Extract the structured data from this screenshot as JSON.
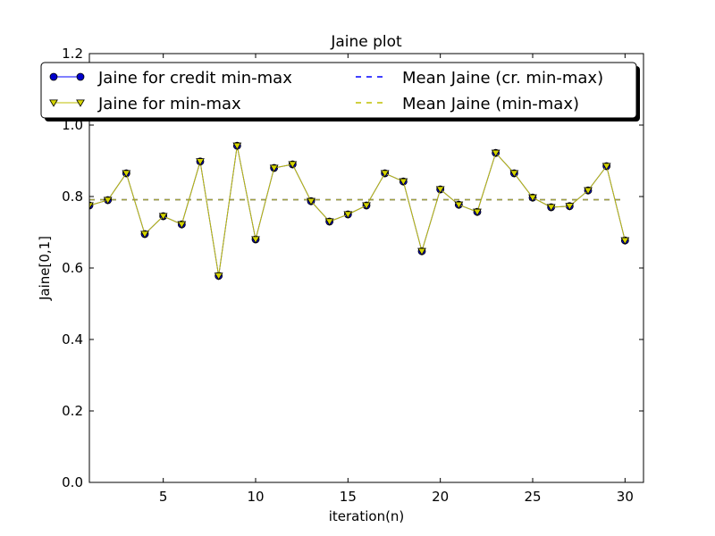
{
  "chart_data": {
    "type": "line",
    "title": "Jaine plot",
    "xlabel": "iteration(n)",
    "ylabel": "Jaine[0,1]",
    "xlim": [
      1,
      31
    ],
    "ylim": [
      0.0,
      1.2
    ],
    "x_ticks": [
      5,
      10,
      15,
      20,
      25,
      30
    ],
    "x_tick_labels": [
      "5",
      "10",
      "15",
      "20",
      "25",
      "30"
    ],
    "y_ticks": [
      0.0,
      0.2,
      0.4,
      0.6,
      0.8,
      1.0,
      1.2
    ],
    "y_tick_labels": [
      "0.0",
      "0.2",
      "0.4",
      "0.6",
      "0.8",
      "1.0",
      "1.2"
    ],
    "grid": false,
    "legend_position": "top",
    "x": [
      1,
      2,
      3,
      4,
      5,
      6,
      7,
      8,
      9,
      10,
      11,
      12,
      13,
      14,
      15,
      16,
      17,
      18,
      19,
      20,
      21,
      22,
      23,
      24,
      25,
      26,
      27,
      28,
      29,
      30
    ],
    "series": [
      {
        "name": "Jaine for credit min-max",
        "style": "line-marker-circle",
        "color": "#0000ff",
        "marker_fill": "#0000cc",
        "values": [
          0.775,
          0.79,
          0.865,
          0.695,
          0.745,
          0.722,
          0.898,
          0.578,
          0.942,
          0.68,
          0.88,
          0.89,
          0.787,
          0.73,
          0.75,
          0.775,
          0.865,
          0.842,
          0.647,
          0.82,
          0.777,
          0.757,
          0.922,
          0.865,
          0.797,
          0.77,
          0.773,
          0.817,
          0.885,
          0.677
        ]
      },
      {
        "name": "Jaine for min-max",
        "style": "line-marker-triangle-down",
        "color": "#bfbf00",
        "marker_fill": "#d4d400",
        "values": [
          0.775,
          0.79,
          0.865,
          0.695,
          0.745,
          0.722,
          0.898,
          0.578,
          0.942,
          0.68,
          0.88,
          0.89,
          0.787,
          0.73,
          0.75,
          0.775,
          0.865,
          0.842,
          0.647,
          0.82,
          0.777,
          0.757,
          0.922,
          0.865,
          0.797,
          0.77,
          0.773,
          0.817,
          0.885,
          0.677
        ]
      },
      {
        "name": "Mean Jaine (cr. min-max)",
        "style": "dashed",
        "color": "#0000ff",
        "x_range": [
          1,
          30
        ],
        "value": 0.791
      },
      {
        "name": "Mean Jaine (min-max)",
        "style": "dashed",
        "color": "#bfbf00",
        "x_range": [
          1,
          30
        ],
        "value": 0.791
      }
    ]
  }
}
